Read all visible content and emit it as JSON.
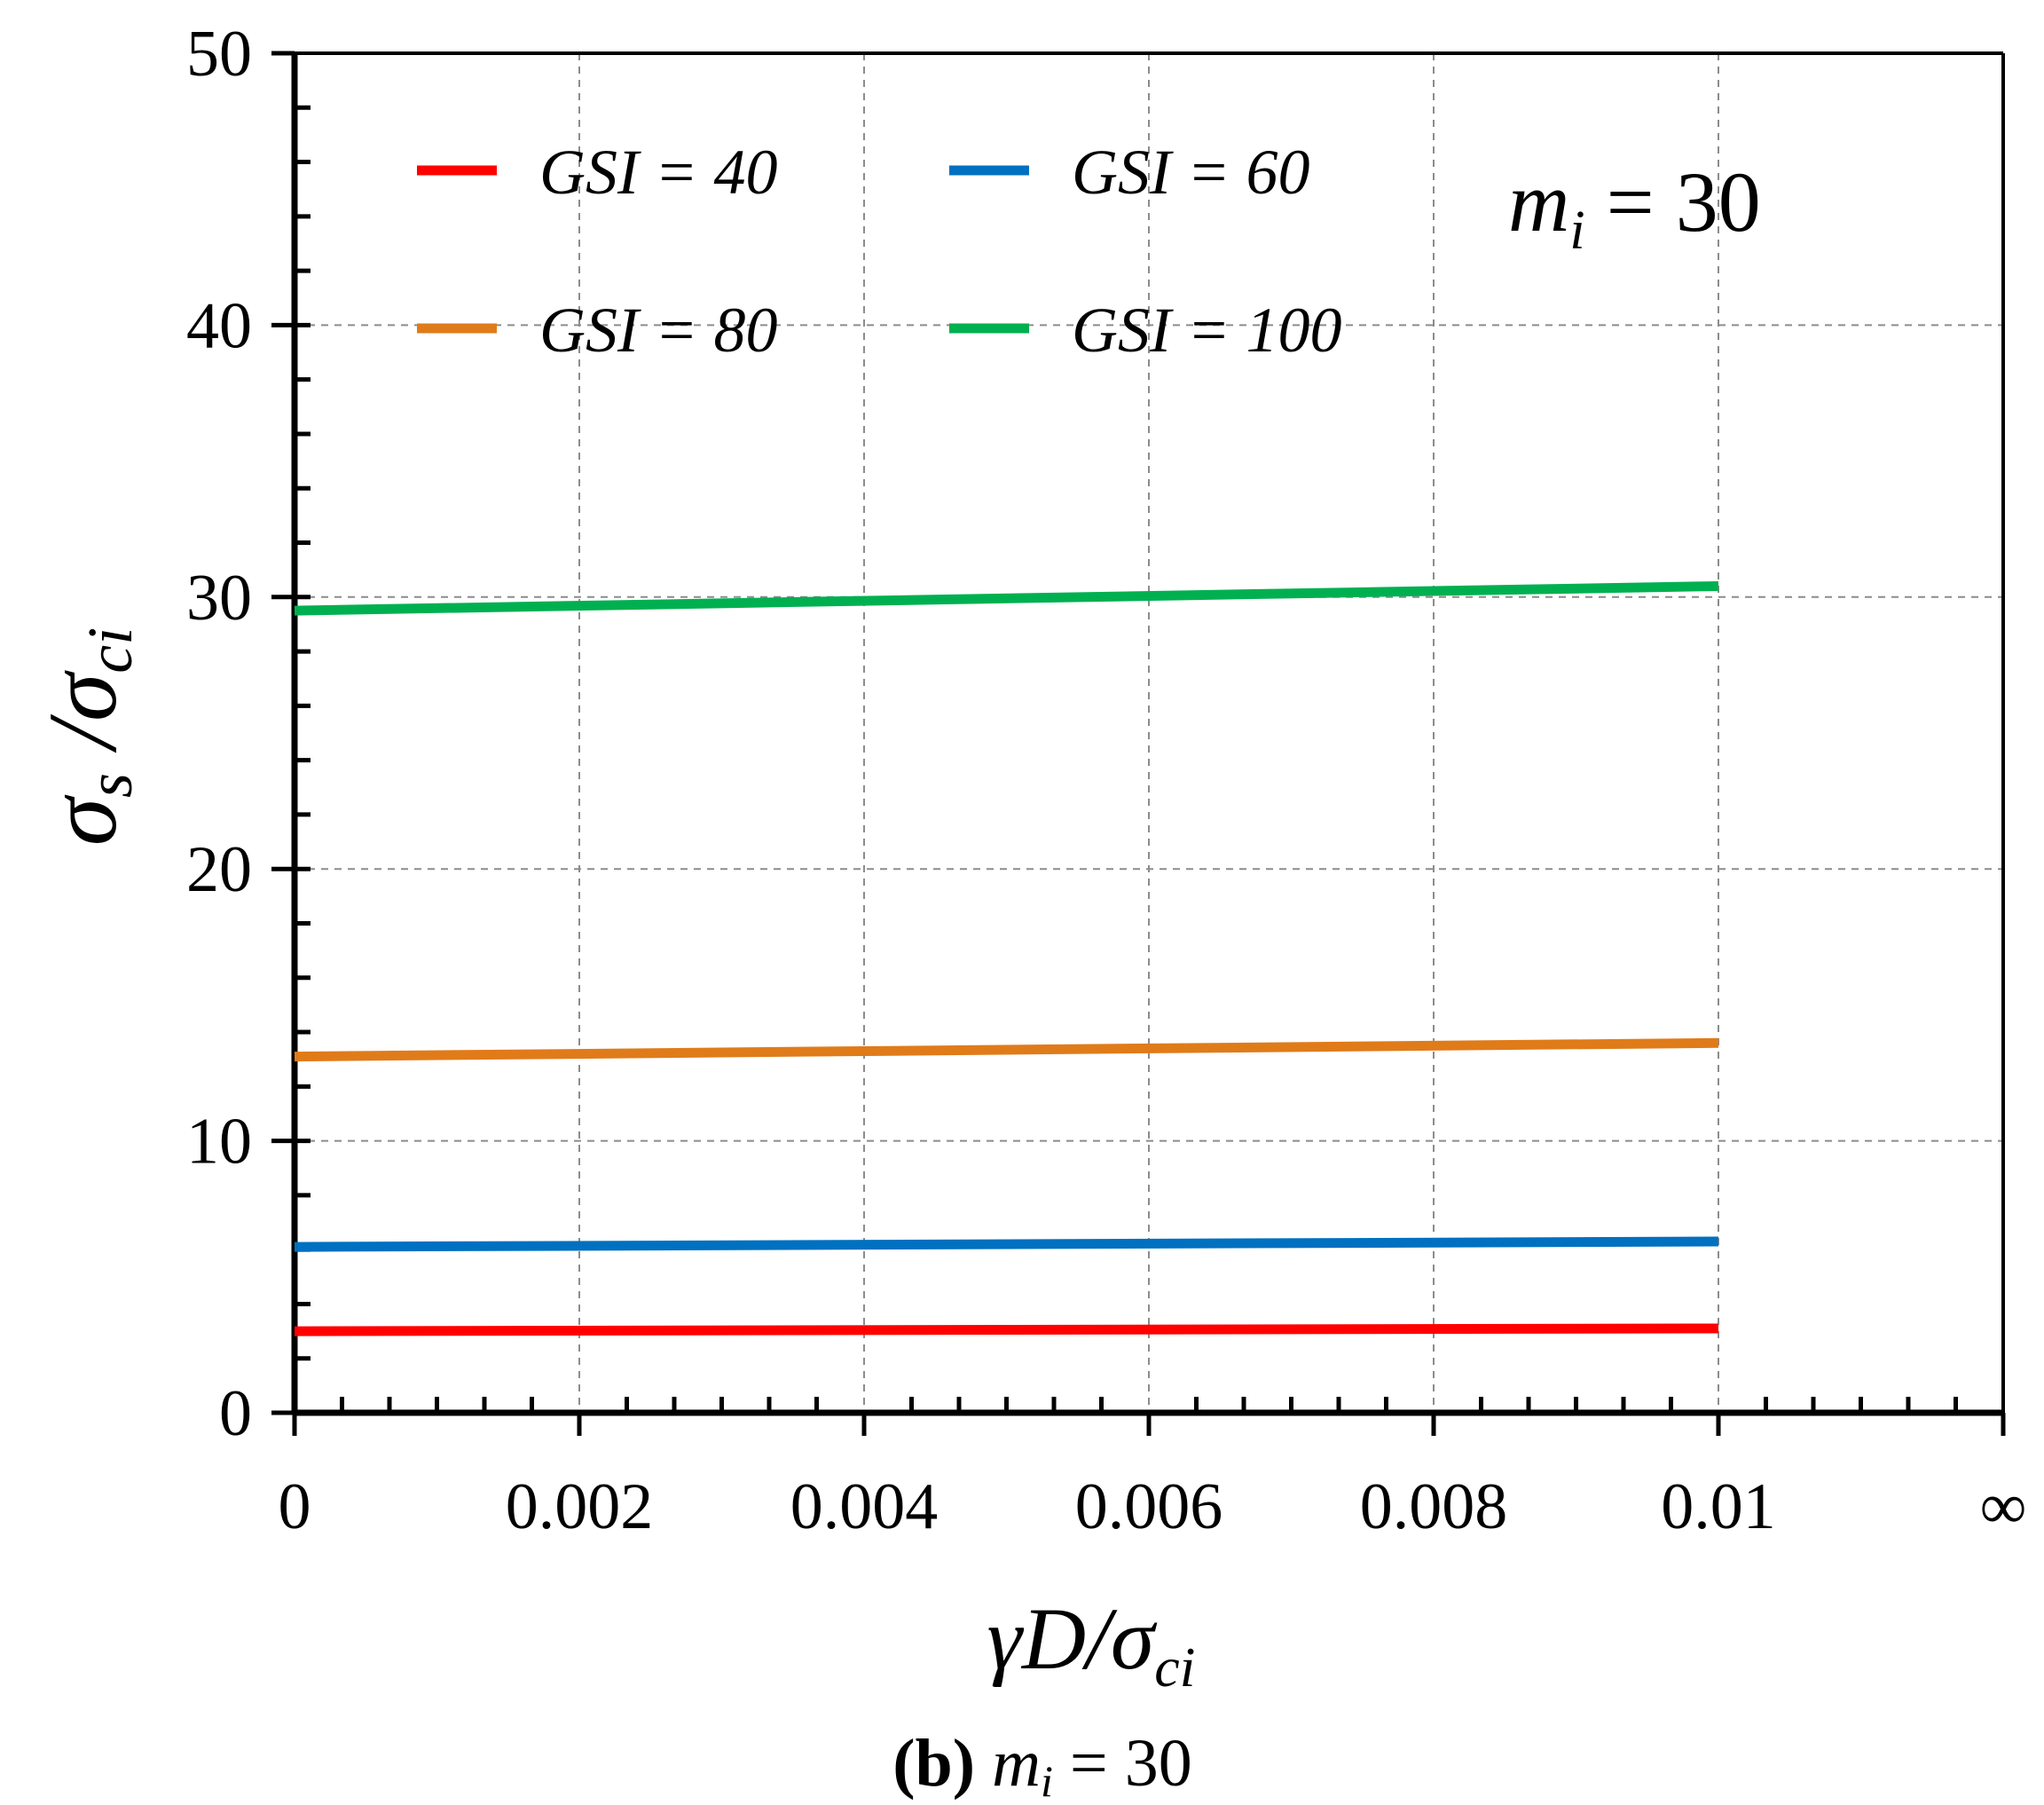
{
  "chart_data": {
    "type": "line",
    "title": "",
    "xlabel": {
      "main": "γD/σ",
      "sub": "ci"
    },
    "ylabel": {
      "main": "σ",
      "sub1": "s",
      "slash": " /σ",
      "sub2": "ci"
    },
    "xlim": [
      0,
      0.012
    ],
    "ylim": [
      0,
      50
    ],
    "x_tick_values": [
      0,
      0.002,
      0.004,
      0.006,
      0.008,
      0.01,
      0.012
    ],
    "x_tick_labels": [
      "0",
      "0.002",
      "0.004",
      "0.006",
      "0.008",
      "0.01",
      "∞"
    ],
    "y_tick_values": [
      0,
      10,
      20,
      30,
      40,
      50
    ],
    "y_tick_labels": [
      "0",
      "10",
      "20",
      "30",
      "40",
      "50"
    ],
    "grid": true,
    "legend_position": "top-left",
    "series": [
      {
        "name": "GSI = 40",
        "color": "#ff0000",
        "x": [
          0,
          0.01
        ],
        "y": [
          3.0,
          3.1
        ]
      },
      {
        "name": "GSI = 60",
        "color": "#0070c0",
        "x": [
          0,
          0.01
        ],
        "y": [
          6.1,
          6.3
        ]
      },
      {
        "name": "GSI = 80",
        "color": "#e07b1a",
        "x": [
          0,
          0.01
        ],
        "y": [
          13.1,
          13.6
        ]
      },
      {
        "name": "GSI = 100",
        "color": "#00b050",
        "x": [
          0,
          0.01
        ],
        "y": [
          29.5,
          30.4
        ]
      }
    ],
    "annotation": {
      "main": "m",
      "sub": "i",
      "rest": " = 30"
    }
  },
  "caption": {
    "bold": "(b)",
    "main": " m",
    "sub": "i",
    "rest": " = 30"
  }
}
